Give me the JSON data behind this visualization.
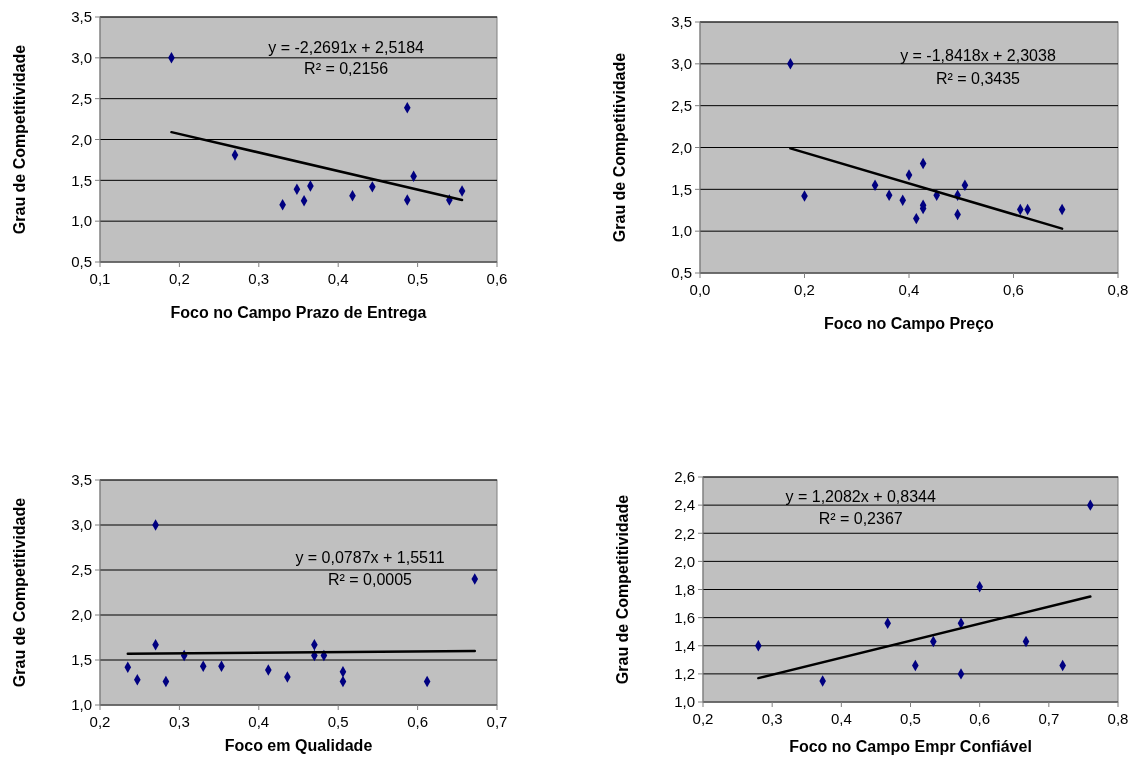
{
  "chart_data": [
    {
      "type": "scatter",
      "xlabel": "Foco no Campo Prazo de Entrega",
      "ylabel": "Grau de Competitividade",
      "annotations": [
        "y = -2,2691x + 2,5184",
        "R² = 0,2156"
      ],
      "grid": "y",
      "marker": "diamond",
      "xlim": [
        0.1,
        0.6
      ],
      "xticks": [
        {
          "value": 0.1,
          "label": "0,1"
        },
        {
          "value": 0.2,
          "label": "0,2"
        },
        {
          "value": 0.3,
          "label": "0,3"
        },
        {
          "value": 0.4,
          "label": "0,4"
        },
        {
          "value": 0.5,
          "label": "0,5"
        },
        {
          "value": 0.6,
          "label": "0,6"
        }
      ],
      "ylim": [
        0.5,
        3.5
      ],
      "yticks": [
        {
          "value": 0.5,
          "label": "0,5"
        },
        {
          "value": 1,
          "label": "1,0"
        },
        {
          "value": 1.5,
          "label": "1,5"
        },
        {
          "value": 2,
          "label": "2,0"
        },
        {
          "value": 2.5,
          "label": "2,5"
        },
        {
          "value": 3,
          "label": "3,0"
        },
        {
          "value": 3.5,
          "label": "3,5"
        }
      ],
      "series": [
        {
          "type": "scatter",
          "color": "#000080",
          "x": [
            0.19,
            0.27,
            0.33,
            0.348,
            0.357,
            0.365,
            0.418,
            0.443,
            0.487,
            0.487,
            0.495,
            0.54,
            0.556
          ],
          "values": [
            3.0,
            1.81,
            1.2,
            1.39,
            1.25,
            1.43,
            1.31,
            1.42,
            2.39,
            1.26,
            1.55,
            1.26,
            1.37
          ]
        },
        {
          "type": "line",
          "color": "#000000",
          "marker": "none",
          "x": [
            0.19,
            0.556
          ],
          "values": [
            2.09,
            1.26
          ]
        }
      ]
    },
    {
      "type": "scatter",
      "xlabel": "Foco no Campo Preço",
      "ylabel": "Grau de Competitividade",
      "annotations": [
        "y = -1,8418x + 2,3038",
        "R² = 0,3435"
      ],
      "grid": "y",
      "marker": "diamond",
      "xlim": [
        0,
        0.8
      ],
      "xticks": [
        {
          "value": 0,
          "label": "0,0"
        },
        {
          "value": 0.2,
          "label": "0,2"
        },
        {
          "value": 0.4,
          "label": "0,4"
        },
        {
          "value": 0.6,
          "label": "0,6"
        },
        {
          "value": 0.8,
          "label": "0,8"
        }
      ],
      "ylim": [
        0.5,
        3.5
      ],
      "yticks": [
        {
          "value": 0.5,
          "label": "0,5"
        },
        {
          "value": 1,
          "label": "1,0"
        },
        {
          "value": 1.5,
          "label": "1,5"
        },
        {
          "value": 2,
          "label": "2,0"
        },
        {
          "value": 2.5,
          "label": "2,5"
        },
        {
          "value": 3,
          "label": "3,0"
        },
        {
          "value": 3.5,
          "label": "3,5"
        }
      ],
      "series": [
        {
          "type": "scatter",
          "color": "#000080",
          "x": [
            0.173,
            0.2,
            0.335,
            0.362,
            0.388,
            0.4,
            0.414,
            0.427,
            0.427,
            0.427,
            0.453,
            0.493,
            0.493,
            0.507,
            0.613,
            0.627,
            0.693
          ],
          "values": [
            3.0,
            1.42,
            1.55,
            1.43,
            1.37,
            1.67,
            1.15,
            1.81,
            1.31,
            1.27,
            1.43,
            1.43,
            1.2,
            1.55,
            1.26,
            1.26,
            1.26
          ]
        },
        {
          "type": "line",
          "color": "#000000",
          "marker": "none",
          "x": [
            0.173,
            0.693
          ],
          "values": [
            1.99,
            1.03
          ]
        }
      ]
    },
    {
      "type": "scatter",
      "xlabel": "Foco em Qualidade",
      "ylabel": "Grau de Competitividade",
      "annotations": [
        "y = 0,0787x + 1,5511",
        "R² = 0,0005"
      ],
      "grid": "y",
      "marker": "diamond",
      "xlim": [
        0.2,
        0.7
      ],
      "xticks": [
        {
          "value": 0.2,
          "label": "0,2"
        },
        {
          "value": 0.3,
          "label": "0,3"
        },
        {
          "value": 0.4,
          "label": "0,4"
        },
        {
          "value": 0.5,
          "label": "0,5"
        },
        {
          "value": 0.6,
          "label": "0,6"
        },
        {
          "value": 0.7,
          "label": "0,7"
        }
      ],
      "ylim": [
        1,
        3.5
      ],
      "yticks": [
        {
          "value": 1,
          "label": "1,0"
        },
        {
          "value": 1.5,
          "label": "1,5"
        },
        {
          "value": 2,
          "label": "2,0"
        },
        {
          "value": 2.5,
          "label": "2,5"
        },
        {
          "value": 3,
          "label": "3,0"
        },
        {
          "value": 3.5,
          "label": "3,5"
        }
      ],
      "series": [
        {
          "type": "scatter",
          "color": "#000080",
          "x": [
            0.235,
            0.247,
            0.27,
            0.27,
            0.283,
            0.306,
            0.33,
            0.353,
            0.412,
            0.436,
            0.47,
            0.47,
            0.482,
            0.506,
            0.506,
            0.612,
            0.672
          ],
          "values": [
            1.42,
            1.28,
            3.0,
            1.67,
            1.26,
            1.55,
            1.43,
            1.43,
            1.39,
            1.31,
            1.67,
            1.55,
            1.55,
            1.37,
            1.26,
            1.26,
            2.4
          ]
        },
        {
          "type": "line",
          "color": "#000000",
          "marker": "none",
          "x": [
            0.235,
            0.672
          ],
          "values": [
            1.57,
            1.6
          ]
        }
      ]
    },
    {
      "type": "scatter",
      "xlabel": "Foco no Campo Empr Confiável",
      "ylabel": "Grau de Competitividade",
      "annotations": [
        "y = 1,2082x + 0,8344",
        "R² = 0,2367"
      ],
      "grid": "y",
      "marker": "diamond",
      "xlim": [
        0.2,
        0.8
      ],
      "xticks": [
        {
          "value": 0.2,
          "label": "0,2"
        },
        {
          "value": 0.3,
          "label": "0,3"
        },
        {
          "value": 0.4,
          "label": "0,4"
        },
        {
          "value": 0.5,
          "label": "0,5"
        },
        {
          "value": 0.6,
          "label": "0,6"
        },
        {
          "value": 0.7,
          "label": "0,7"
        },
        {
          "value": 0.8,
          "label": "0,8"
        }
      ],
      "ylim": [
        1,
        2.6
      ],
      "yticks": [
        {
          "value": 1,
          "label": "1,0"
        },
        {
          "value": 1.2,
          "label": "1,2"
        },
        {
          "value": 1.4,
          "label": "1,4"
        },
        {
          "value": 1.6,
          "label": "1,6"
        },
        {
          "value": 1.8,
          "label": "1,8"
        },
        {
          "value": 2,
          "label": "2,0"
        },
        {
          "value": 2.2,
          "label": "2,2"
        },
        {
          "value": 2.4,
          "label": "2,4"
        },
        {
          "value": 2.6,
          "label": "2,6"
        }
      ],
      "series": [
        {
          "type": "scatter",
          "color": "#000080",
          "x": [
            0.28,
            0.373,
            0.467,
            0.507,
            0.533,
            0.573,
            0.573,
            0.6,
            0.667,
            0.72,
            0.76
          ],
          "values": [
            1.4,
            1.15,
            1.56,
            1.26,
            1.43,
            1.56,
            1.2,
            1.82,
            1.43,
            1.26,
            2.4
          ]
        },
        {
          "type": "line",
          "color": "#000000",
          "marker": "none",
          "x": [
            0.28,
            0.76
          ],
          "values": [
            1.17,
            1.75
          ]
        }
      ]
    }
  ]
}
